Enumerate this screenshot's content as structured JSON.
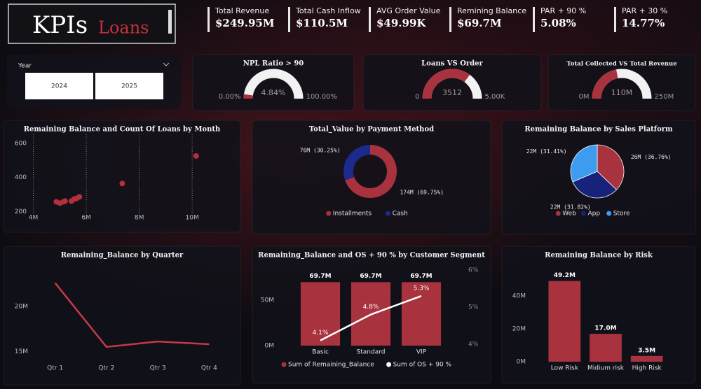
{
  "header": {
    "title": "KPIs",
    "subtitle": "Loans"
  },
  "kpis": [
    {
      "label": "Total Revenue",
      "value": "$249.95M"
    },
    {
      "label": "Total Cash Inflow",
      "value": "$110.5M"
    },
    {
      "label": "AVG Order Value",
      "value": "$49.99K"
    },
    {
      "label": "Remining Balance",
      "value": "$69.7M"
    },
    {
      "label": "PAR + 90 %",
      "value": "5.08%"
    },
    {
      "label": "PAR + 30 %",
      "value": "14.77%"
    }
  ],
  "slicer": {
    "label": "Year",
    "options": [
      "2024",
      "2025"
    ]
  },
  "chart_data": [
    {
      "type": "gauge",
      "title": "NPL Ratio > 90",
      "values": [
        4.84
      ],
      "value_labels": [
        "4.84%"
      ],
      "ylim": [
        0,
        100
      ],
      "yticks": [
        {
          "value": 0,
          "label": "0.00%"
        },
        {
          "value": 100,
          "label": "100.00%"
        }
      ],
      "color": "#a8323e",
      "track_color": "#f2f2f2"
    },
    {
      "type": "gauge",
      "title": "Loans VS Order",
      "values": [
        3512
      ],
      "ylim": [
        0,
        5000
      ],
      "yticks": [
        0,
        {
          "value": 5000,
          "label": "5.00K"
        }
      ],
      "color": "#a8323e",
      "track_color": "#f2f2f2"
    },
    {
      "type": "gauge",
      "title": "Total Collected VS Total Revenue",
      "values": [
        110
      ],
      "value_labels": [
        "110M"
      ],
      "ylim": [
        0,
        250
      ],
      "yticks": [
        {
          "value": 0,
          "label": "0M"
        },
        {
          "value": 250,
          "label": "250M"
        }
      ],
      "color": "#a8323e",
      "track_color": "#f2f2f2"
    },
    {
      "type": "scatter",
      "title": "Remaining Balance and Count Of Loans by Month",
      "x": [
        4.87,
        5.0,
        5.13,
        5.2,
        5.44,
        5.54,
        5.64,
        5.74,
        7.36,
        10.15
      ],
      "values": [
        258,
        250,
        258,
        262,
        262,
        274,
        278,
        287,
        365,
        526
      ],
      "xlim": [
        3.8,
        10.5
      ],
      "xticks": [
        {
          "value": 4,
          "label": "4M"
        },
        {
          "value": 6,
          "label": "6M"
        },
        {
          "value": 8,
          "label": "8M"
        },
        {
          "value": 10,
          "label": "10M"
        }
      ],
      "ylim": [
        190,
        620
      ],
      "yticks": [
        200,
        400,
        600
      ],
      "color": "#b3303c",
      "grid": "x"
    },
    {
      "type": "donut",
      "title": "Total_Value by Payment Method",
      "categories": [
        "Installments",
        "Cash"
      ],
      "values": [
        174,
        76
      ],
      "value_labels": [
        "174M (69.75%)",
        "76M (30.25%)"
      ],
      "colors": [
        "#a8323e",
        "#1b2a8c"
      ]
    },
    {
      "type": "pie",
      "title": "Remaining Balance by Sales Platform",
      "categories": [
        "Web",
        "App",
        "Store"
      ],
      "values": [
        26,
        22,
        22
      ],
      "value_labels": [
        "26M (36.76%)",
        "22M (31.82%)",
        "22M (31.41%)"
      ],
      "colors": [
        "#a8323e",
        "#17237a",
        "#3d9cf0"
      ]
    },
    {
      "type": "line",
      "title": "Remaining_Balance by Quarter",
      "categories": [
        "Qtr 1",
        "Qtr 2",
        "Qtr 3",
        "Qtr 4"
      ],
      "values": [
        22.6,
        15.5,
        16.1,
        15.8
      ],
      "ylim": [
        14.4,
        24.5
      ],
      "yticks": [
        {
          "value": 15,
          "label": "15M"
        },
        {
          "value": 20,
          "label": "20M"
        }
      ],
      "color": "#c43a48"
    },
    {
      "type": "combo",
      "title": "Remaining_Balance and OS + 90 % by Customer Segment",
      "categories": [
        "Basic",
        "Standard",
        "VIP"
      ],
      "series": [
        {
          "name": "Sum of Remaining_Balance",
          "color": "#a8323e",
          "values": [
            69.7,
            69.7,
            69.7
          ],
          "value_labels": [
            "69.7M",
            "69.7M",
            "69.7M"
          ]
        },
        {
          "name": "Sum of OS + 90 %",
          "color": "#ffffff",
          "values": [
            4.1,
            4.8,
            5.3
          ],
          "value_labels": [
            "4.1%",
            "4.8%",
            "5.3%"
          ],
          "axis": "y2"
        }
      ],
      "ylim": [
        0,
        83
      ],
      "yticks": [
        {
          "value": 0,
          "label": "0M"
        },
        {
          "value": 50,
          "label": "50M"
        }
      ],
      "y2lim": [
        3.96,
        6
      ],
      "y2ticks": [
        {
          "value": 4,
          "label": "4%"
        },
        {
          "value": 5,
          "label": "5%"
        },
        {
          "value": 6,
          "label": "6%"
        }
      ]
    },
    {
      "type": "bar",
      "title": "Remaining Balance by Risk",
      "categories": [
        "Low Risk",
        "Midium risk",
        "High Risk"
      ],
      "values": [
        49.2,
        17.0,
        3.5
      ],
      "value_labels": [
        "49.2M",
        "17.0M",
        "3.5M"
      ],
      "ylim": [
        0,
        52
      ],
      "yticks": [
        {
          "value": 0,
          "label": "0M"
        },
        {
          "value": 20,
          "label": "20M"
        },
        {
          "value": 40,
          "label": "40M"
        }
      ],
      "color": "#a8323e"
    }
  ]
}
